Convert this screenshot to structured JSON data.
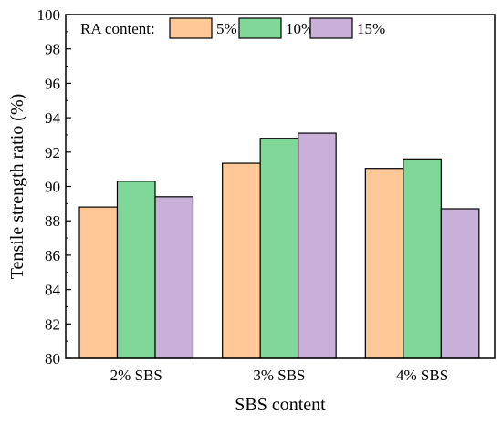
{
  "chart_data": {
    "type": "bar",
    "title": "",
    "xlabel": "SBS content",
    "ylabel": "Tensile strength ratio (%)",
    "ylim": [
      80,
      100
    ],
    "yticks": [
      "80",
      "82",
      "84",
      "86",
      "88",
      "90",
      "92",
      "94",
      "96",
      "98",
      "100"
    ],
    "categories": [
      "2% SBS",
      "3% SBS",
      "4% SBS"
    ],
    "legend": {
      "title": "RA content:",
      "placement": "top-left",
      "orientation": "horizontal"
    },
    "grid": false,
    "series": [
      {
        "name": "5%",
        "color": "#FFC896",
        "values": [
          88.8,
          91.35,
          91.05
        ]
      },
      {
        "name": "10%",
        "color": "#80D898",
        "values": [
          90.3,
          92.8,
          91.6
        ]
      },
      {
        "name": "15%",
        "color": "#C8B0D8",
        "values": [
          89.4,
          93.1,
          88.7
        ]
      }
    ]
  }
}
